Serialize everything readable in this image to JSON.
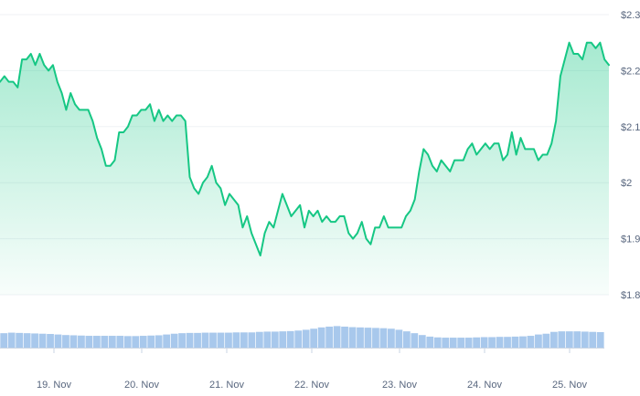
{
  "chart_data": {
    "type": "area",
    "title": "",
    "xlabel": "",
    "ylabel": "",
    "x_ticks": [
      "19. Nov",
      "20. Nov",
      "21. Nov",
      "22. Nov",
      "23. Nov",
      "24. Nov",
      "25. Nov"
    ],
    "y_ticks": [
      "$1.8",
      "$1.9",
      "$2",
      "$2.1",
      "$2.2",
      "$2.3"
    ],
    "ylim": [
      1.8,
      2.3
    ],
    "x_range": [
      "18. Nov 12:00",
      "25. Nov 15:00"
    ],
    "grid": "horizontal",
    "line_color": "#16c784",
    "volume_color": "#a8c8ec",
    "series": [
      {
        "values": [
          2.18,
          2.19,
          2.18,
          2.18,
          2.17,
          2.22,
          2.22,
          2.23,
          2.21,
          2.23,
          2.21,
          2.2,
          2.21,
          2.18,
          2.16,
          2.13,
          2.16,
          2.14,
          2.13,
          2.13,
          2.13,
          2.11,
          2.08,
          2.06,
          2.03,
          2.03,
          2.04,
          2.09,
          2.09,
          2.1,
          2.12,
          2.12,
          2.13,
          2.13,
          2.14,
          2.11,
          2.13,
          2.11,
          2.12,
          2.11,
          2.12,
          2.12,
          2.11,
          2.01,
          1.99,
          1.98,
          2.0,
          2.01,
          2.03,
          2.0,
          1.99,
          1.96,
          1.98,
          1.97,
          1.96,
          1.92,
          1.94,
          1.91,
          1.89,
          1.87,
          1.91,
          1.93,
          1.92,
          1.95,
          1.98,
          1.96,
          1.94,
          1.95,
          1.96,
          1.92,
          1.95,
          1.94,
          1.95,
          1.93,
          1.94,
          1.93,
          1.93,
          1.94,
          1.94,
          1.91,
          1.9,
          1.91,
          1.93,
          1.9,
          1.89,
          1.92,
          1.92,
          1.94,
          1.92,
          1.92,
          1.92,
          1.92,
          1.94,
          1.95,
          1.97,
          2.02,
          2.06,
          2.05,
          2.03,
          2.02,
          2.04,
          2.03,
          2.02,
          2.04,
          2.04,
          2.04,
          2.06,
          2.07,
          2.05,
          2.06,
          2.07,
          2.06,
          2.07,
          2.07,
          2.04,
          2.05,
          2.09,
          2.05,
          2.08,
          2.06,
          2.06,
          2.06,
          2.04,
          2.05,
          2.05,
          2.07,
          2.11,
          2.19,
          2.22,
          2.25,
          2.23,
          2.23,
          2.22,
          2.25,
          2.25,
          2.24,
          2.25,
          2.22,
          2.21
        ]
      }
    ],
    "volume": [
      0.55,
      0.57,
      0.56,
      0.55,
      0.54,
      0.53,
      0.52,
      0.5,
      0.48,
      0.47,
      0.46,
      0.45,
      0.45,
      0.45,
      0.45,
      0.45,
      0.44,
      0.44,
      0.45,
      0.46,
      0.47,
      0.5,
      0.53,
      0.55,
      0.56,
      0.56,
      0.57,
      0.57,
      0.57,
      0.57,
      0.58,
      0.58,
      0.58,
      0.6,
      0.61,
      0.61,
      0.62,
      0.63,
      0.65,
      0.68,
      0.72,
      0.77,
      0.8,
      0.82,
      0.8,
      0.78,
      0.77,
      0.76,
      0.75,
      0.74,
      0.72,
      0.68,
      0.62,
      0.55,
      0.48,
      0.42,
      0.39,
      0.38,
      0.38,
      0.38,
      0.38,
      0.39,
      0.4,
      0.4,
      0.41,
      0.41,
      0.42,
      0.43,
      0.45,
      0.5,
      0.53,
      0.6,
      0.62,
      0.62,
      0.62,
      0.61,
      0.6,
      0.59
    ]
  }
}
